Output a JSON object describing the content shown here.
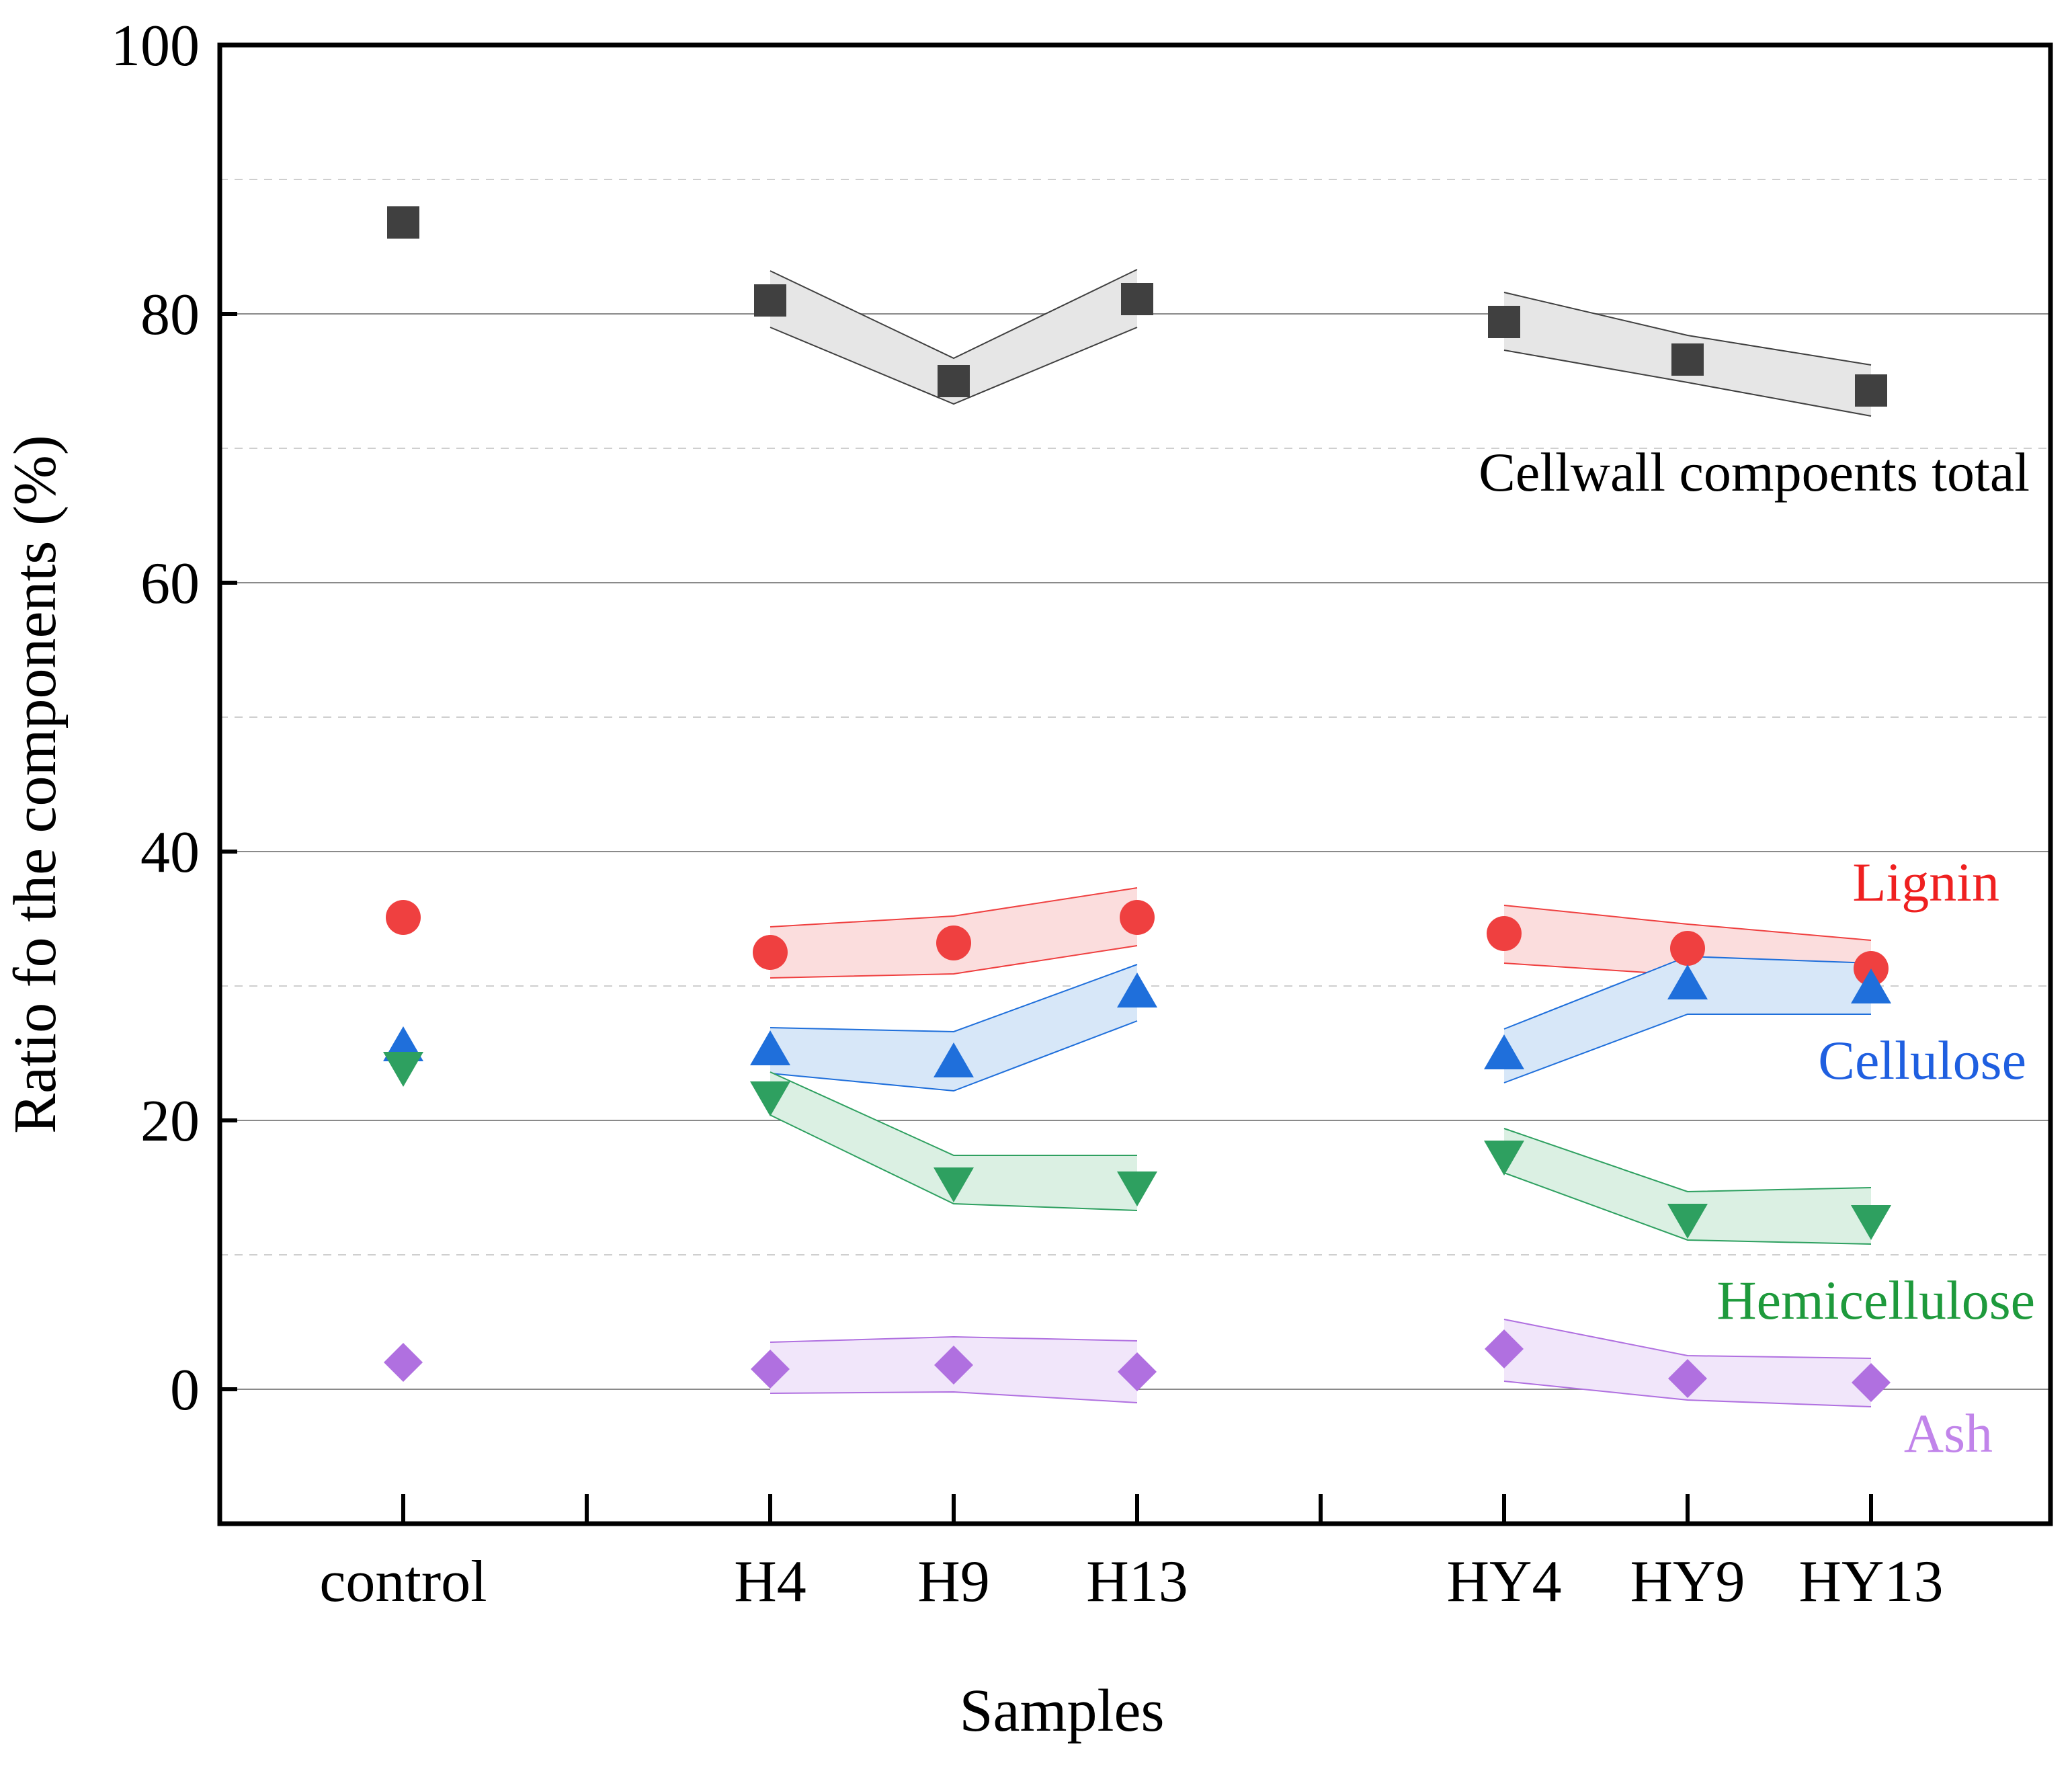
{
  "chart_data": {
    "type": "scatter",
    "title": "",
    "xlabel": "Samples",
    "ylabel": "Ratio fo the components (%)",
    "ylim": [
      -10,
      100
    ],
    "yticks": [
      0,
      20,
      40,
      60,
      80,
      100
    ],
    "minor_grid": [
      10,
      30,
      50,
      70,
      90
    ],
    "categories": [
      "control",
      "",
      "H4",
      "H9",
      "H13",
      "",
      "HY4",
      "HY9",
      "HY13"
    ],
    "groups": [
      {
        "name": "H",
        "categories": [
          "H4",
          "H9",
          "H13"
        ]
      },
      {
        "name": "HY",
        "categories": [
          "HY4",
          "HY9",
          "HY13"
        ]
      }
    ],
    "series": [
      {
        "name": "Cellwall compoents total",
        "marker": "square",
        "color": "#404040",
        "band_fill": "#e6e6e6",
        "band_stroke": "#404040",
        "points": {
          "control": 86.8,
          "H4": 81.0,
          "H9": 75.0,
          "H13": 81.1,
          "HY4": 79.4,
          "HY9": 76.6,
          "HY13": 74.3
        },
        "band_upper": {
          "H4": 83.2,
          "H9": 76.7,
          "H13": 83.3,
          "HY4": 81.6,
          "HY9": 78.4,
          "HY13": 76.2
        },
        "band_lower": {
          "H4": 79.0,
          "H9": 73.3,
          "H13": 79.0,
          "HY4": 77.3,
          "HY9": 74.9,
          "HY13": 72.4
        }
      },
      {
        "name": "Lignin",
        "marker": "circle",
        "color": "#ef4040",
        "band_fill": "#fbdddd",
        "band_stroke": "#ef4040",
        "points": {
          "control": 35.1,
          "H4": 32.5,
          "H9": 33.2,
          "H13": 35.1,
          "HY4": 33.9,
          "HY9": 32.8,
          "HY13": 31.3
        },
        "band_upper": {
          "H4": 34.4,
          "H9": 35.2,
          "H13": 37.3,
          "HY4": 36.0,
          "HY9": 34.6,
          "HY13": 33.4
        },
        "band_lower": {
          "H4": 30.6,
          "H9": 30.9,
          "H13": 33.0,
          "HY4": 31.7,
          "HY9": 30.8,
          "HY13": 29.3
        }
      },
      {
        "name": "Cellulose",
        "marker": "triangle-up",
        "color": "#1f6fdb",
        "band_fill": "#d7e7f8",
        "band_stroke": "#1f6fdb",
        "points": {
          "control": 25.5,
          "H4": 25.2,
          "H9": 24.3,
          "H13": 29.5,
          "HY4": 24.9,
          "HY9": 30.1,
          "HY13": 29.8
        },
        "band_upper": {
          "H4": 26.9,
          "H9": 26.6,
          "H13": 31.6,
          "HY4": 26.8,
          "HY9": 32.2,
          "HY13": 31.7
        },
        "band_lower": {
          "H4": 23.5,
          "H9": 22.2,
          "H13": 27.4,
          "HY4": 22.8,
          "HY9": 27.9,
          "HY13": 27.9
        }
      },
      {
        "name": "Hemicellulose",
        "marker": "triangle-down",
        "color": "#2ea060",
        "band_fill": "#dbf0e3",
        "band_stroke": "#2ea060",
        "points": {
          "control": 24.0,
          "H4": 21.8,
          "H9": 15.4,
          "H13": 15.1,
          "HY4": 17.4,
          "HY9": 12.7,
          "HY13": 12.6
        },
        "band_upper": {
          "H4": 23.6,
          "H9": 17.4,
          "H13": 17.4,
          "HY4": 19.4,
          "HY9": 14.7,
          "HY13": 15.0
        },
        "band_lower": {
          "H4": 20.4,
          "H9": 13.8,
          "H13": 13.3,
          "HY4": 16.1,
          "HY9": 11.1,
          "HY13": 10.8
        }
      },
      {
        "name": "Ash",
        "marker": "diamond",
        "color": "#b070e0",
        "band_fill": "#f1e6fa",
        "band_stroke": "#b070e0",
        "points": {
          "control": 2.0,
          "H4": 1.5,
          "H9": 1.8,
          "H13": 1.3,
          "HY4": 3.0,
          "HY9": 0.8,
          "HY13": 0.5
        },
        "band_upper": {
          "H4": 3.5,
          "H9": 3.9,
          "H13": 3.6,
          "HY4": 5.2,
          "HY9": 2.5,
          "HY13": 2.3
        },
        "band_lower": {
          "H4": -0.3,
          "H9": -0.2,
          "H13": -1.0,
          "HY4": 0.6,
          "HY9": -0.8,
          "HY13": -1.3
        }
      }
    ],
    "annotations": [
      {
        "text": "Cellwall compoents total",
        "series": "Cellwall compoents total"
      },
      {
        "text": "Lignin",
        "series": "Lignin"
      },
      {
        "text": "Cellulose",
        "series": "Cellulose"
      },
      {
        "text": "Hemicellulose",
        "series": "Hemicellulose"
      },
      {
        "text": "Ash",
        "series": "Ash"
      }
    ]
  }
}
